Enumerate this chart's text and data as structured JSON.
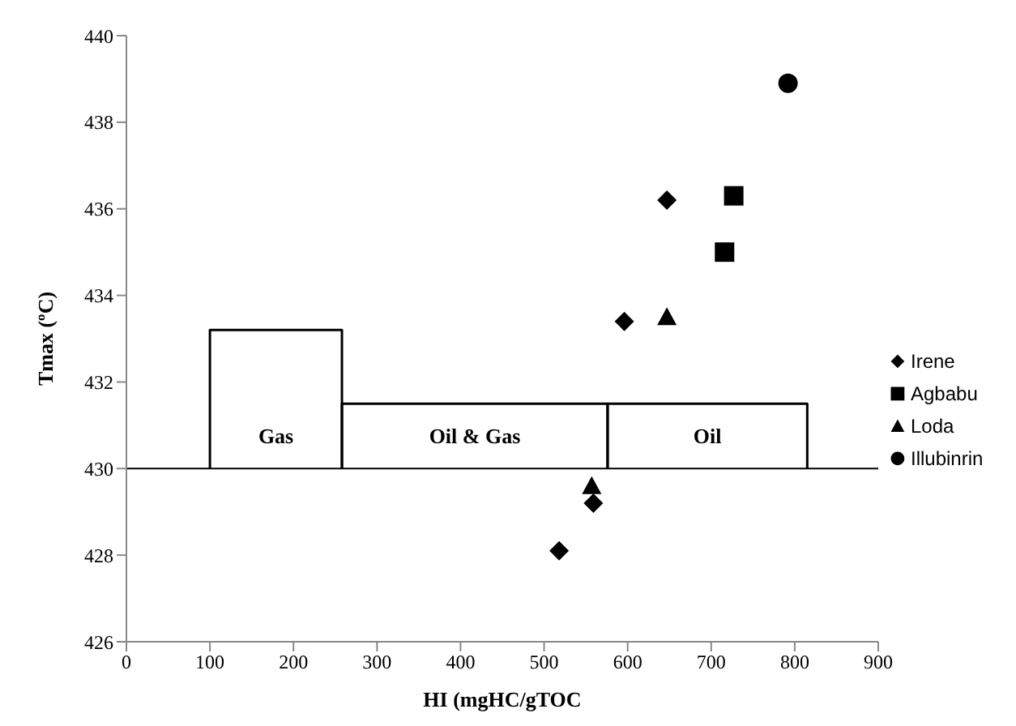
{
  "chart_data": {
    "type": "scatter",
    "xlabel": "HI (mgHC/gTOC",
    "ylabel": "Tmax (ºC)",
    "xlim": [
      0,
      900
    ],
    "xticks": [
      0,
      100,
      200,
      300,
      400,
      500,
      600,
      700,
      800,
      900
    ],
    "ylim": [
      426,
      440
    ],
    "yticks": [
      426,
      428,
      430,
      432,
      434,
      436,
      438,
      440
    ],
    "grid": false,
    "legend": "right",
    "series": [
      {
        "name": "Irene",
        "color": "#000000",
        "marker": "diamond",
        "x": [
          518,
          559,
          596,
          647
        ],
        "values": [
          428.1,
          429.2,
          433.4,
          436.2
        ]
      },
      {
        "name": "Agbabu",
        "color": "#000000",
        "marker": "square",
        "x": [
          716,
          727
        ],
        "values": [
          435.0,
          436.3
        ]
      },
      {
        "name": "Loda",
        "color": "#000000",
        "marker": "triangle",
        "x": [
          557,
          647
        ],
        "values": [
          429.6,
          433.5
        ]
      },
      {
        "name": "Illubinrin",
        "color": "#000000",
        "marker": "circle",
        "x": [
          792
        ],
        "values": [
          438.9
        ]
      },
      {
        "type": "line",
        "color": "#000000",
        "marker": "none",
        "x": [
          100,
          100,
          258,
          258
        ],
        "values": [
          430,
          433.2,
          433.2,
          430
        ]
      },
      {
        "type": "line",
        "color": "#000000",
        "marker": "none",
        "x": [
          258,
          258,
          576,
          576
        ],
        "values": [
          430,
          431.5,
          431.5,
          430
        ]
      },
      {
        "type": "line",
        "color": "#000000",
        "marker": "none",
        "x": [
          576,
          576,
          815,
          815
        ],
        "values": [
          430,
          431.5,
          431.5,
          430
        ]
      }
    ],
    "ref_lines": [
      {
        "axis": "y",
        "value": 430,
        "color": "#000000"
      }
    ],
    "annotations": [
      "Gas",
      "Oil & Gas",
      "Oil"
    ]
  }
}
